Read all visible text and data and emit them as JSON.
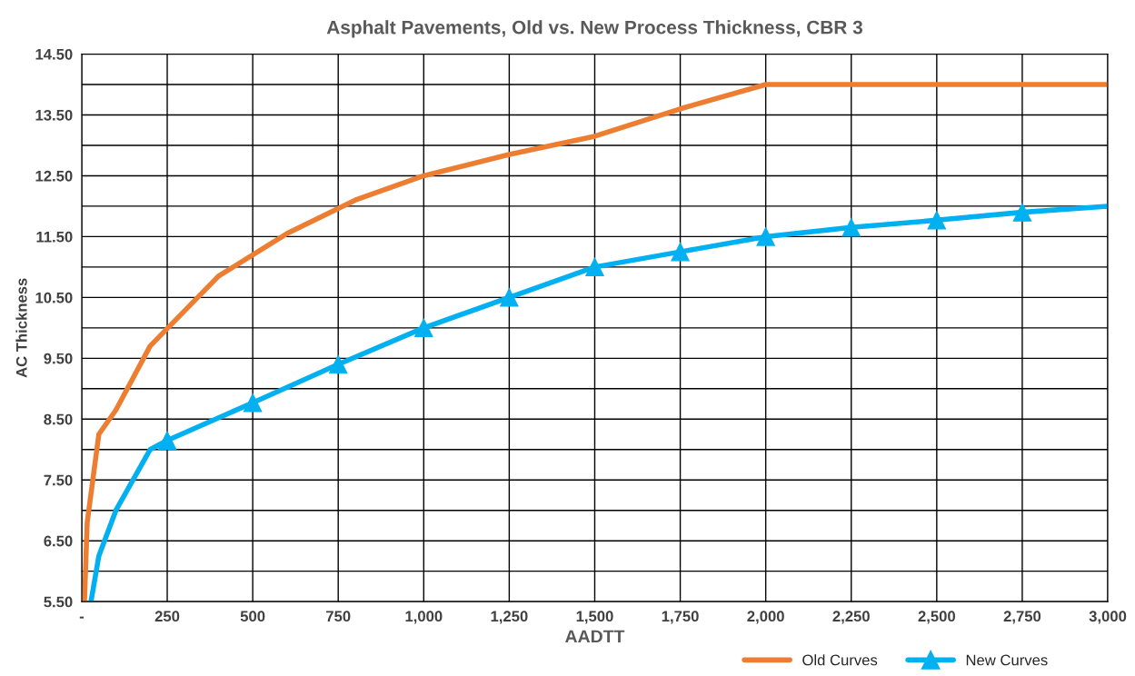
{
  "chart_data": {
    "type": "line",
    "title": "Asphalt Pavements, Old vs. New Process Thickness, CBR 3",
    "xlabel": "AADTT",
    "ylabel": "AC Thickness",
    "xlim": [
      0,
      3000
    ],
    "ylim": [
      5.5,
      14.5
    ],
    "xticks": [
      {
        "value": 0,
        "label": "-"
      },
      250,
      500,
      750,
      {
        "value": 1000,
        "label": "1,000"
      },
      {
        "value": 1250,
        "label": "1,250"
      },
      {
        "value": 1500,
        "label": "1,500"
      },
      {
        "value": 1750,
        "label": "1,750"
      },
      {
        "value": 2000,
        "label": "2,000"
      },
      {
        "value": 2250,
        "label": "2,250"
      },
      {
        "value": 2500,
        "label": "2,500"
      },
      {
        "value": 2750,
        "label": "2,750"
      },
      {
        "value": 3000,
        "label": "3,000"
      }
    ],
    "yticks": [
      {
        "value": 5.5,
        "label": "5.50"
      },
      {
        "value": 6.0,
        "label": null
      },
      {
        "value": 6.5,
        "label": "6.50"
      },
      {
        "value": 7.0,
        "label": null
      },
      {
        "value": 7.5,
        "label": "7.50"
      },
      {
        "value": 8.0,
        "label": null
      },
      {
        "value": 8.5,
        "label": "8.50"
      },
      {
        "value": 9.0,
        "label": null
      },
      {
        "value": 9.5,
        "label": "9.50"
      },
      {
        "value": 10.0,
        "label": null
      },
      {
        "value": 10.5,
        "label": "10.50"
      },
      {
        "value": 11.0,
        "label": null
      },
      {
        "value": 11.5,
        "label": "11.50"
      },
      {
        "value": 12.0,
        "label": null
      },
      {
        "value": 12.5,
        "label": "12.50"
      },
      {
        "value": 13.0,
        "label": null
      },
      {
        "value": 13.5,
        "label": "13.50"
      },
      {
        "value": 14.0,
        "label": null
      },
      {
        "value": 14.5,
        "label": "14.50"
      }
    ],
    "grid": true,
    "legend": "bottom right",
    "series": [
      {
        "name": "Old Curves",
        "color": "#ed7d31",
        "marker": "none",
        "x": [
          8,
          16,
          50,
          100,
          200,
          400,
          600,
          800,
          1000,
          1250,
          1500,
          1750,
          2000,
          3000
        ],
        "values": [
          5.5,
          6.8,
          8.25,
          8.65,
          9.7,
          10.85,
          11.55,
          12.1,
          12.5,
          12.85,
          13.15,
          13.6,
          14.0,
          14.0
        ]
      },
      {
        "color": "#00b0f0",
        "marker": "none",
        "x": [
          27,
          50,
          100,
          200,
          250
        ],
        "values": [
          5.5,
          6.25,
          7.0,
          8.0,
          8.15
        ]
      },
      {
        "name": "New Curves",
        "color": "#00b0f0",
        "marker": "triangle",
        "x": [
          250,
          500,
          750,
          1000,
          1250,
          1500,
          1750,
          2000,
          2250,
          2500,
          2750
        ],
        "values": [
          8.15,
          8.77,
          9.4,
          10.0,
          10.5,
          11.0,
          11.25,
          11.5,
          11.65,
          11.77,
          11.9
        ]
      },
      {
        "color": "#00b0f0",
        "marker": "none",
        "x": [
          2750,
          3000
        ],
        "values": [
          11.9,
          12.0
        ]
      }
    ]
  }
}
